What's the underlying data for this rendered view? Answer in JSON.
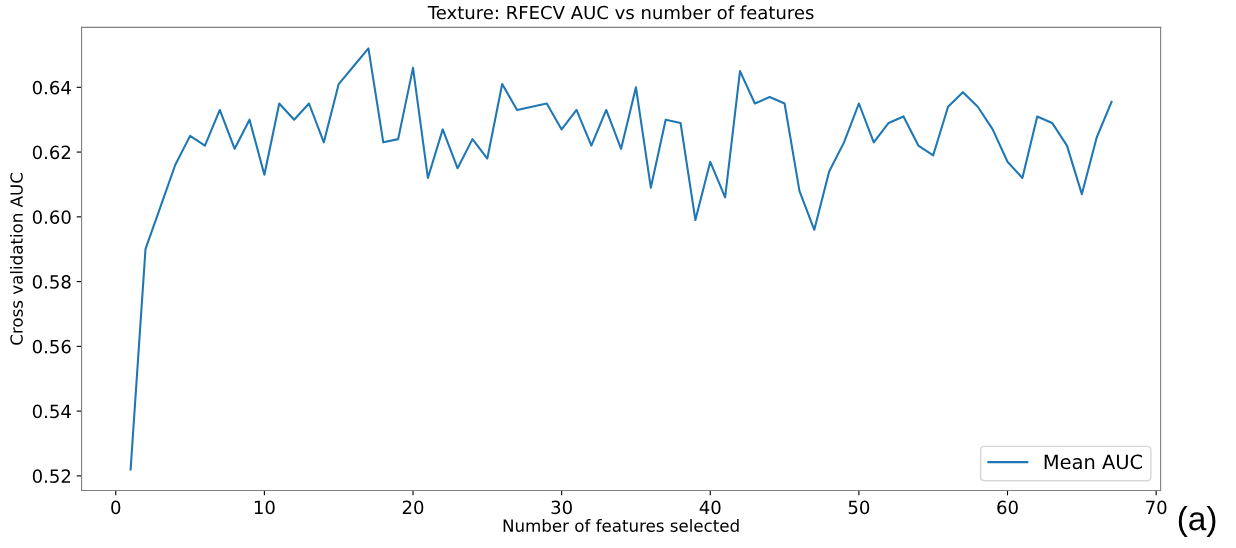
{
  "chart_data": {
    "type": "line",
    "title": "Texture: RFECV AUC vs number of features",
    "xlabel": "Number of features selected",
    "ylabel": "Cross validation AUC",
    "x": [
      1,
      2,
      3,
      4,
      5,
      6,
      7,
      8,
      9,
      10,
      11,
      12,
      13,
      14,
      15,
      16,
      17,
      18,
      19,
      20,
      21,
      22,
      23,
      24,
      25,
      26,
      27,
      28,
      29,
      30,
      31,
      32,
      33,
      34,
      35,
      36,
      37,
      38,
      39,
      40,
      41,
      42,
      43,
      44,
      45,
      46,
      47,
      48,
      49,
      50,
      51,
      52,
      53,
      54,
      55,
      56,
      57,
      58,
      59,
      60,
      61,
      62,
      63,
      64,
      65,
      66,
      67
    ],
    "series": [
      {
        "name": "Mean AUC",
        "color": "#1f77b4",
        "values": [
          0.522,
          0.59,
          0.603,
          0.616,
          0.625,
          0.622,
          0.633,
          0.621,
          0.63,
          0.613,
          0.635,
          0.63,
          0.635,
          0.623,
          0.641,
          0.6465,
          0.652,
          0.623,
          0.624,
          0.646,
          0.612,
          0.627,
          0.615,
          0.624,
          0.618,
          0.641,
          0.633,
          0.634,
          0.635,
          0.627,
          0.633,
          0.622,
          0.633,
          0.621,
          0.64,
          0.609,
          0.63,
          0.629,
          0.599,
          0.617,
          0.606,
          0.645,
          0.635,
          0.637,
          0.635,
          0.608,
          0.596,
          0.614,
          0.623,
          0.635,
          0.623,
          0.629,
          0.631,
          0.622,
          0.619,
          0.634,
          0.6385,
          0.634,
          0.627,
          0.617,
          0.612,
          0.631,
          0.629,
          0.622,
          0.607,
          0.6245,
          0.6355
        ]
      }
    ],
    "xlim": [
      -2.3,
      70.3
    ],
    "ylim": [
      0.5155,
      0.6585
    ],
    "xticks": [
      0,
      10,
      20,
      30,
      40,
      50,
      60,
      70
    ],
    "yticks": [
      {
        "value": 0.52,
        "label": "0.52"
      },
      {
        "value": 0.54,
        "label": "0.54"
      },
      {
        "value": 0.56,
        "label": "0.56"
      },
      {
        "value": 0.58,
        "label": "0.58"
      },
      {
        "value": 0.6,
        "label": "0.60"
      },
      {
        "value": 0.62,
        "label": "0.62"
      },
      {
        "value": 0.64,
        "label": "0.64"
      }
    ],
    "legend": "bottom right",
    "grid": false,
    "marker": "none",
    "line_style": "solid",
    "annotations": [
      "(a)"
    ]
  }
}
